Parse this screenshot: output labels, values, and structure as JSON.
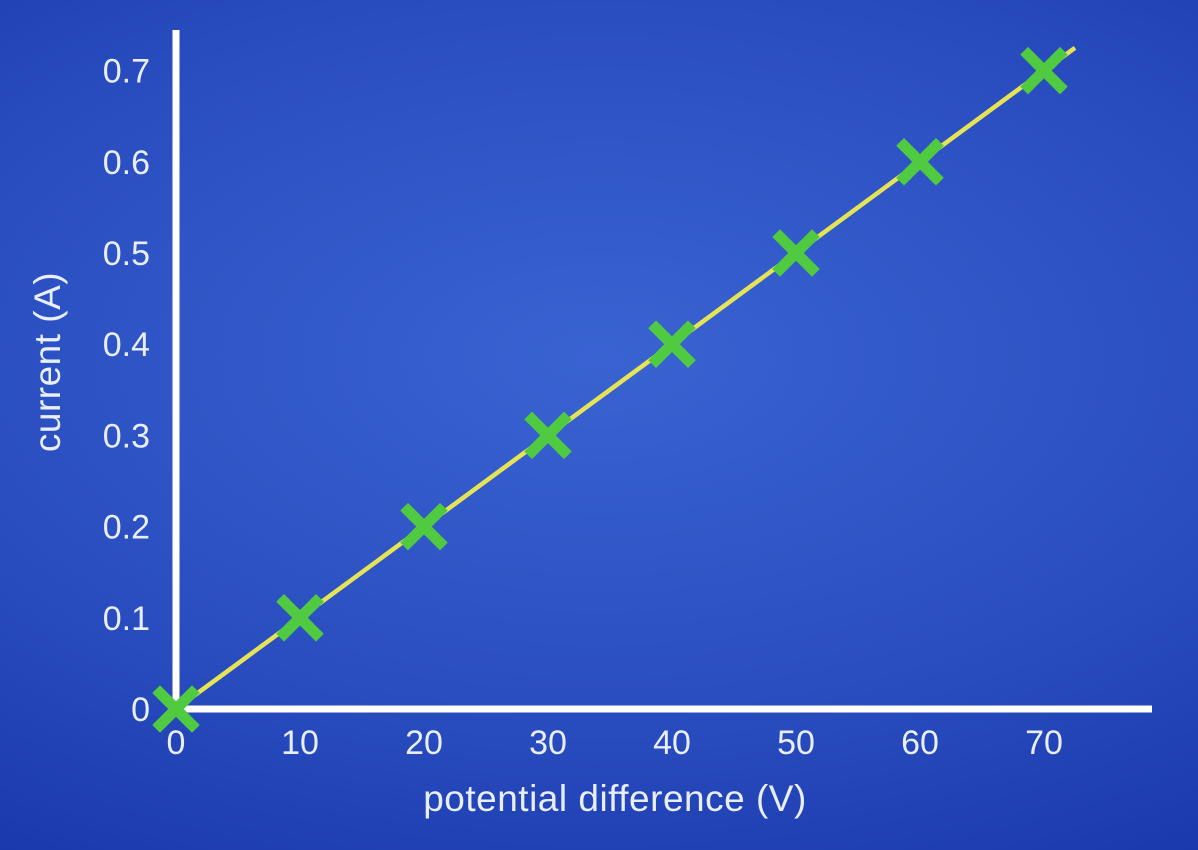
{
  "chart_data": {
    "type": "scatter",
    "title": "",
    "xlabel": "potential difference (V)",
    "ylabel": "current (A)",
    "x": [
      0,
      10,
      20,
      30,
      40,
      50,
      60,
      70
    ],
    "y": [
      0,
      0.1,
      0.2,
      0.3,
      0.4,
      0.5,
      0.6,
      0.7
    ],
    "x_ticks": [
      0,
      10,
      20,
      30,
      40,
      50,
      60,
      70
    ],
    "y_ticks": [
      0,
      0.1,
      0.2,
      0.3,
      0.4,
      0.5,
      0.6,
      0.7
    ],
    "xlim": [
      0,
      78
    ],
    "ylim": [
      0,
      0.74
    ],
    "grid": false,
    "legend": "none",
    "marker": "x",
    "line_through_points": true,
    "colors": {
      "background_top": "#11309f",
      "background_center": "#3a63d2",
      "axis": "#ffffff",
      "tick_text": "#e9eefc",
      "fit_line": "#e6e455",
      "marker": "#4fca41"
    }
  }
}
